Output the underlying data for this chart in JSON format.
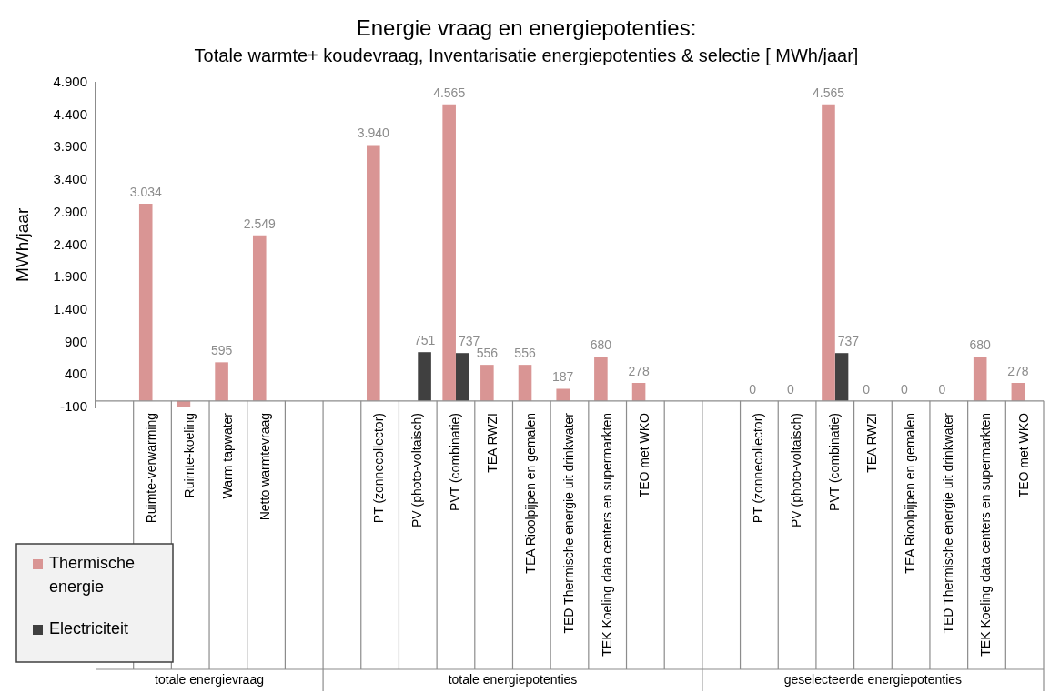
{
  "chart_data": {
    "type": "bar",
    "title": "Energie vraag en energiepotenties:",
    "subtitle": "Totale warmte+ koudevraag, Inventarisatie energiepotenties & selectie [ MWh/jaar]",
    "ylabel": "MWh/jaar",
    "categories": [
      null,
      "Ruimte-verwarming",
      "Ruimte-koeling",
      "Warm tapwater",
      "Netto warmtevraag",
      null,
      null,
      "PT (zonnecollector)",
      "PV (photo-voltaisch)",
      "PVT (combinatie)",
      "TEA RWZI",
      "TEA Rioolpijpen en gemalen",
      "TED Thermische energie uit drinkwater",
      "TEK Koeling data centers en supermarkten",
      "TEO met WKO",
      null,
      null,
      "PT (zonnecollector)",
      "PV (photo-voltaisch)",
      "PVT (combinatie)",
      "TEA RWZI",
      "TEA Rioolpijpen en gemalen",
      "TED Thermische energie uit drinkwater",
      "TEK Koeling data centers en supermarkten",
      "TEO met WKO"
    ],
    "series": [
      {
        "name": "Thermische energie",
        "color": "#d99594",
        "values": [
          null,
          3034,
          -100,
          595,
          2549,
          null,
          null,
          3940,
          null,
          4565,
          556,
          556,
          187,
          680,
          278,
          null,
          null,
          0,
          0,
          4565,
          0,
          0,
          0,
          680,
          278
        ],
        "value_labels": [
          null,
          "3.034",
          null,
          "595",
          "2.549",
          null,
          null,
          "3.940",
          null,
          "4.565",
          "556",
          "556",
          "187",
          "680",
          "278",
          null,
          null,
          "0",
          "0",
          "4.565",
          "0",
          "0",
          "0",
          "680",
          "278"
        ]
      },
      {
        "name": "Electriciteit",
        "color": "#404040",
        "values": [
          null,
          null,
          null,
          null,
          null,
          null,
          null,
          null,
          751,
          737,
          null,
          null,
          null,
          null,
          null,
          null,
          null,
          null,
          null,
          737,
          null,
          null,
          null,
          null,
          null
        ],
        "value_labels": [
          null,
          null,
          null,
          null,
          null,
          null,
          null,
          null,
          "751",
          "737",
          null,
          null,
          null,
          null,
          null,
          null,
          null,
          null,
          null,
          "737",
          null,
          null,
          null,
          null,
          null
        ]
      }
    ],
    "ylim": [
      -100,
      4900
    ],
    "yticks": [
      {
        "value": -100,
        "label": "-100"
      },
      {
        "value": 400,
        "label": "400"
      },
      {
        "value": 900,
        "label": "900"
      },
      {
        "value": 1400,
        "label": "1.400"
      },
      {
        "value": 1900,
        "label": "1.900"
      },
      {
        "value": 2400,
        "label": "2.400"
      },
      {
        "value": 2900,
        "label": "2.900"
      },
      {
        "value": 3400,
        "label": "3.400"
      },
      {
        "value": 3900,
        "label": "3.900"
      },
      {
        "value": 4400,
        "label": "4.400"
      },
      {
        "value": 4900,
        "label": "4.900"
      }
    ],
    "grid": false,
    "legend": "bottom left",
    "annotations": [
      "totale energievraag",
      "totale energiepotenties",
      "geselecteerde energiepotenties"
    ]
  }
}
